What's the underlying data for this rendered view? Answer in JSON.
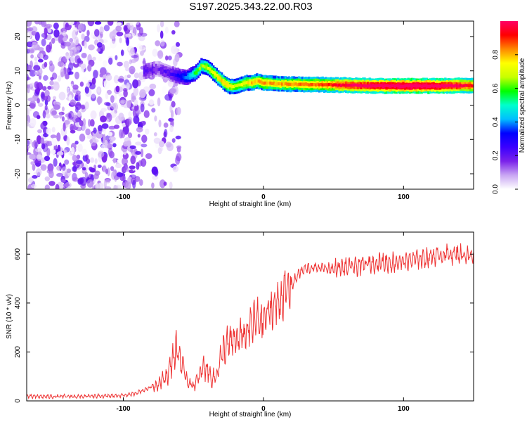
{
  "title": "S197.2025.343.22.00.R03",
  "chart_data": [
    {
      "type": "heatmap",
      "xlabel": "Height of straight line (km)",
      "ylabel": "Frequency (Hz)",
      "xlim": [
        -169,
        150
      ],
      "ylim": [
        -24.5,
        24.5
      ],
      "xticks": [
        -100,
        0,
        100
      ],
      "yticks": [
        -20,
        -10,
        0,
        10,
        20
      ],
      "xtick_labels": [
        "-100",
        "0",
        "100"
      ],
      "ytick_labels": [
        "-20",
        "-10",
        "0",
        "10",
        "20"
      ],
      "colorbar": {
        "label": "Normalized spectral amplitude",
        "range": [
          0,
          1
        ],
        "ticks": [
          0.0,
          0.2,
          0.4,
          0.6,
          0.8
        ],
        "tick_labels": [
          "0.0",
          "0.2",
          "0.4",
          "0.6",
          "0.8"
        ],
        "colormap": [
          "#ffffff",
          "#c9a6f3",
          "#7b22ea",
          "#3a00ff",
          "#0000ff",
          "#00bfff",
          "#00ffcc",
          "#00ff00",
          "#c8ff00",
          "#ffff00",
          "#ff8800",
          "#ff0000",
          "#ff0066"
        ]
      },
      "signal_track": {
        "x": [
          -85,
          -75,
          -65,
          -55,
          -48,
          -44,
          -40,
          -36,
          -32,
          -28,
          -24,
          -20,
          -16,
          -12,
          -8,
          -4,
          0,
          10,
          20,
          40,
          60,
          80,
          100,
          120,
          140,
          150
        ],
        "freq": [
          10,
          10.5,
          9,
          8,
          9.5,
          11.5,
          11,
          9.5,
          8,
          6.5,
          5.5,
          5.5,
          6,
          6.5,
          6.5,
          7,
          6.5,
          6.2,
          6.1,
          6.0,
          5.8,
          5.6,
          5.6,
          5.6,
          5.7,
          5.7
        ],
        "amp": [
          0.2,
          0.15,
          0.2,
          0.35,
          0.5,
          0.55,
          0.6,
          0.62,
          0.65,
          0.68,
          0.65,
          0.6,
          0.62,
          0.65,
          0.68,
          0.7,
          0.72,
          0.7,
          0.72,
          0.75,
          0.85,
          0.92,
          0.95,
          0.95,
          0.85,
          0.8
        ]
      },
      "noise_region_x": [
        -169,
        -60
      ]
    },
    {
      "type": "line",
      "xlabel": "Height of straight line (km)",
      "ylabel": "SNR (10 * v/v)",
      "xlim": [
        -169,
        150
      ],
      "ylim": [
        0,
        690
      ],
      "xticks": [
        -100,
        0,
        100
      ],
      "yticks": [
        0,
        200,
        400,
        600
      ],
      "xtick_labels": [
        "-100",
        "0",
        "100"
      ],
      "ytick_labels": [
        "0",
        "200",
        "400",
        "600"
      ],
      "color": "#ee3333",
      "series": [
        {
          "name": "SNR",
          "x": [
            -169,
            -150,
            -130,
            -110,
            -95,
            -85,
            -75,
            -68,
            -64,
            -61,
            -58,
            -54,
            -50,
            -46,
            -43,
            -40,
            -37,
            -34,
            -31,
            -29,
            -25,
            -20,
            -15,
            -10,
            -5,
            0,
            5,
            10,
            15,
            20,
            25,
            30,
            40,
            50,
            60,
            70,
            80,
            90,
            100,
            110,
            120,
            130,
            140,
            150
          ],
          "y": [
            18,
            18,
            18,
            20,
            25,
            45,
            70,
            110,
            190,
            210,
            140,
            80,
            60,
            95,
            140,
            130,
            90,
            100,
            160,
            200,
            230,
            250,
            260,
            300,
            330,
            330,
            370,
            400,
            440,
            470,
            520,
            540,
            545,
            540,
            545,
            555,
            565,
            565,
            570,
            580,
            590,
            600,
            600,
            590
          ]
        }
      ]
    }
  ]
}
